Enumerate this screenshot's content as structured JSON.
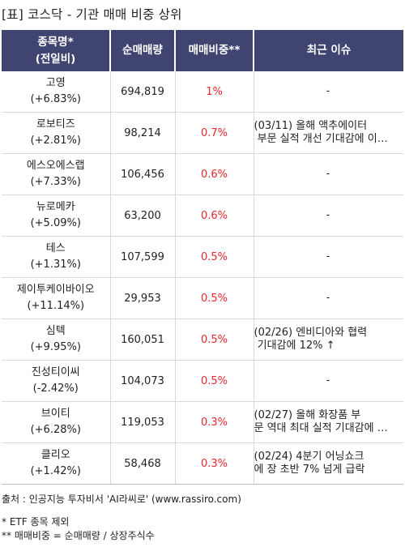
{
  "title": "[표] 코스닥 - 기관 매매 비중 상위",
  "table": {
    "headers": [
      {
        "line1": "종목명*",
        "line2": "(전일비)"
      },
      {
        "line1": "순매매량",
        "line2": ""
      },
      {
        "line1": "매매비중**",
        "line2": ""
      },
      {
        "line1": "최근 이슈",
        "line2": ""
      }
    ],
    "rows": [
      {
        "name": "고영",
        "change": "(+6.83%)",
        "volume": "694,819",
        "ratio": "1%",
        "issue": [
          "-"
        ]
      },
      {
        "name": "로보티즈",
        "change": "(+2.81%)",
        "volume": "98,214",
        "ratio": "0.7%",
        "issue": [
          "(03/11) 올해 액추에이터",
          " 부문 실적 개선 기대감에 이…"
        ]
      },
      {
        "name": "에스오에스랩",
        "change": "(+7.33%)",
        "volume": "106,456",
        "ratio": "0.6%",
        "issue": [
          "-"
        ]
      },
      {
        "name": "뉴로메카",
        "change": "(+5.09%)",
        "volume": "63,200",
        "ratio": "0.6%",
        "issue": [
          "-"
        ]
      },
      {
        "name": "테스",
        "change": "(+1.31%)",
        "volume": "107,599",
        "ratio": "0.5%",
        "issue": [
          "-"
        ]
      },
      {
        "name": "제이투케이바이오",
        "change": "(+11.14%)",
        "volume": "29,953",
        "ratio": "0.5%",
        "issue": [
          "-"
        ]
      },
      {
        "name": "심텍",
        "change": "(+9.95%)",
        "volume": "160,051",
        "ratio": "0.5%",
        "issue": [
          "(02/26) 엔비디아와 협력",
          " 기대감에 12% ↑"
        ]
      },
      {
        "name": "진성티이씨",
        "change": "(-2.42%)",
        "volume": "104,073",
        "ratio": "0.5%",
        "issue": [
          "-"
        ]
      },
      {
        "name": "브이티",
        "change": "(+6.28%)",
        "volume": "119,053",
        "ratio": "0.3%",
        "issue": [
          "(02/27) 올해 화장품 부",
          "문 역대 최대 실적 기대감에 …"
        ]
      },
      {
        "name": "클리오",
        "change": "(+1.42%)",
        "volume": "58,468",
        "ratio": "0.3%",
        "issue": [
          "(02/24) 4분기 어닝쇼크",
          "에 장 초반 7% 넘게 급락"
        ]
      }
    ]
  },
  "footer": {
    "source": "출처 : 인공지능 투자비서 'AI라씨로' (www.rassiro.com)",
    "note1": "* ETF 종목 제외",
    "note2": "** 매매비중 = 순매매량 / 상장주식수"
  },
  "colors": {
    "header_bg": "#3f4470",
    "ratio_text": "#e8262b"
  }
}
